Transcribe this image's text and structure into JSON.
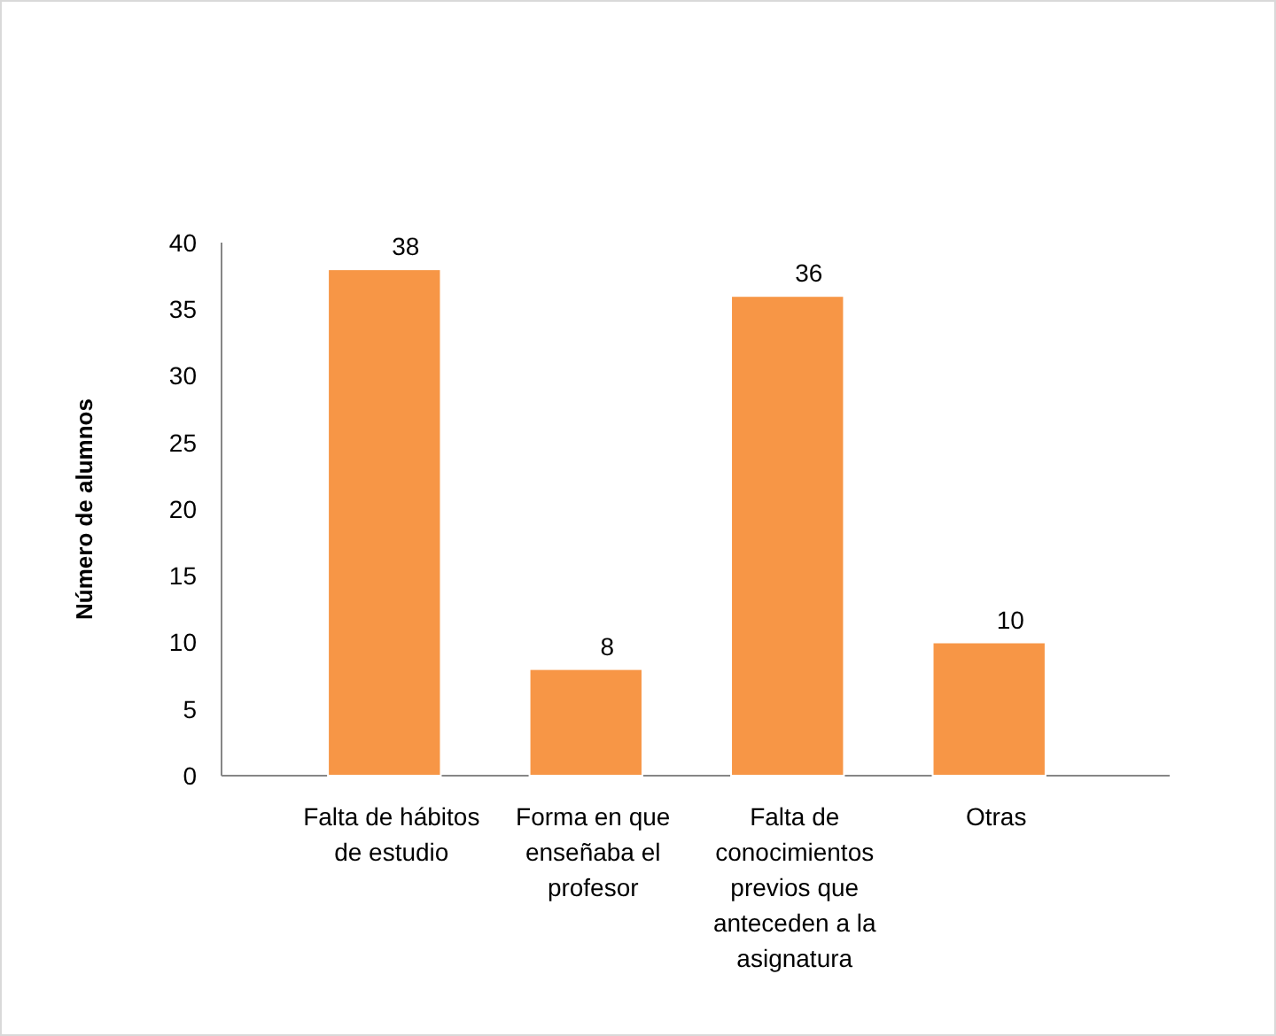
{
  "chart_data": {
    "type": "bar",
    "ylabel": "Número de alumnos",
    "categories": [
      "Falta de hábitos de estudio",
      "Forma en que enseñaba el profesor",
      "Falta de conocimientos previos que anteceden a la asignatura",
      "Otras"
    ],
    "values": [
      38,
      8,
      36,
      10
    ],
    "color": "#f79646",
    "ylim": [
      0,
      40
    ],
    "yticks": [
      0,
      5,
      10,
      15,
      20,
      25,
      30,
      35,
      40
    ],
    "grid": false,
    "data_labels": true
  }
}
